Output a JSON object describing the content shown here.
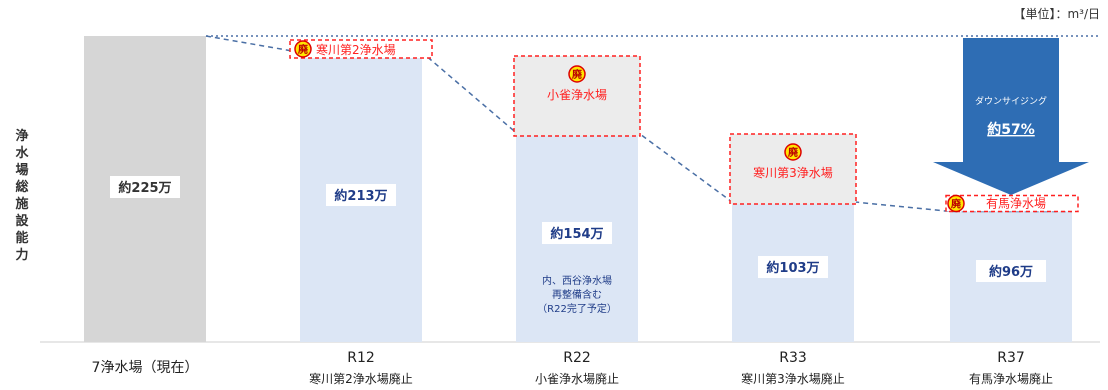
{
  "unit_label": "【単位】：m³/日",
  "ylabel_chars": [
    "浄",
    "水",
    "場",
    "総",
    "施",
    "設",
    "能",
    "力"
  ],
  "chart_data": {
    "type": "bar",
    "categories": [
      "7浄水場（現在）",
      "R12",
      "R22",
      "R33",
      "R37"
    ],
    "category_sublabels": [
      "",
      "寒川第2浄水場廃止",
      "小雀浄水場廃止",
      "寒川第3浄水場廃止",
      "有馬浄水場廃止"
    ],
    "values": [
      225,
      213,
      154,
      103,
      96
    ],
    "value_labels": [
      "約225万",
      "約213万",
      "約154万",
      "約103万",
      "約96万"
    ],
    "unit": "m³/日",
    "ylim": [
      0,
      225
    ],
    "bar_colors": [
      "#d6d6d6",
      "#dce6f5",
      "#dce6f5",
      "#dce6f5",
      "#dce6f5"
    ],
    "annotations": {
      "abolished": [
        {
          "bar": 1,
          "label": "寒川第2浄水場",
          "icon": "廃"
        },
        {
          "bar": 2,
          "label": "小雀浄水場",
          "icon": "廃"
        },
        {
          "bar": 3,
          "label": "寒川第3浄水場",
          "icon": "廃"
        },
        {
          "bar": 4,
          "label": "有馬浄水場",
          "icon": "廃"
        }
      ],
      "note_r22": [
        "内、西谷浄水場",
        "再整備含む",
        "（R22完了予定）"
      ],
      "downsizing": {
        "title": "ダウンサイジング",
        "value": "約57%"
      }
    },
    "colors": {
      "trend_line": "#4a6fa5",
      "abolish_border": "#ff2020",
      "arrow": "#2e6db4",
      "badge_fill": "#ffe600",
      "text_blue": "#1f3c88"
    }
  }
}
